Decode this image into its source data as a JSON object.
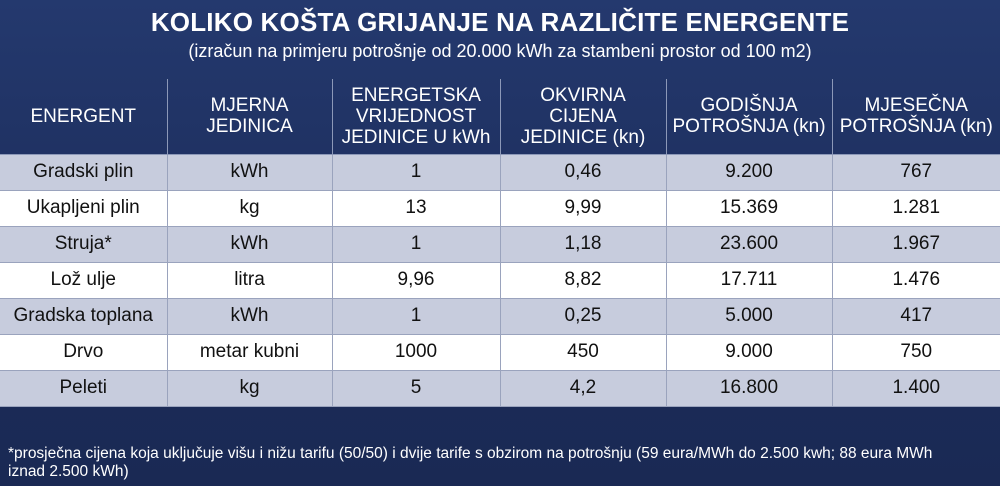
{
  "header": {
    "title": "KOLIKO KOŠTA GRIJANJE NA RAZLIČITE ENERGENTE",
    "subtitle": "(izračun na primjeru potrošnje od 20.000 kWh za stambeni prostor od 100 m2)"
  },
  "table": {
    "columns": [
      [
        "ENERGENT"
      ],
      [
        "MJERNA",
        "JEDINICA"
      ],
      [
        "ENERGETSKA",
        "VRIJEDNOST",
        "JEDINICE U kWh"
      ],
      [
        "OKVIRNA CIJENA",
        "JEDINICE (kn)"
      ],
      [
        "GODIŠNJA",
        "POTROŠNJA (kn)"
      ],
      [
        "MJESEČNA",
        "POTROŠNJA (kn)"
      ]
    ],
    "rows": [
      [
        "Gradski plin",
        "kWh",
        "1",
        "0,46",
        "9.200",
        "767"
      ],
      [
        "Ukapljeni plin",
        "kg",
        "13",
        "9,99",
        "15.369",
        "1.281"
      ],
      [
        "Struja*",
        "kWh",
        "1",
        "1,18",
        "23.600",
        "1.967"
      ],
      [
        "Lož ulje",
        "litra",
        "9,96",
        "8,82",
        "17.711",
        "1.476"
      ],
      [
        "Gradska toplana",
        "kWh",
        "1",
        "0,25",
        "5.000",
        "417"
      ],
      [
        "Drvo",
        "metar kubni",
        "1000",
        "450",
        "9.000",
        "750"
      ],
      [
        "Peleti",
        "kg",
        "5",
        "4,2",
        "16.800",
        "1.400"
      ]
    ]
  },
  "footnote": {
    "line1": "*prosječna cijena koja uključuje višu i nižu tarifu (50/50) i dvije tarife s obzirom na potrošnju (59 eura/MWh do 2.500 kwh; 88 eura MWh",
    "line2": "iznad 2.500 kWh)"
  },
  "colors": {
    "background": "#1f3160",
    "row_shaded": "#c7ccdd",
    "row_white": "#ffffff",
    "text_light": "#ffffff",
    "text_dark": "#111111"
  }
}
